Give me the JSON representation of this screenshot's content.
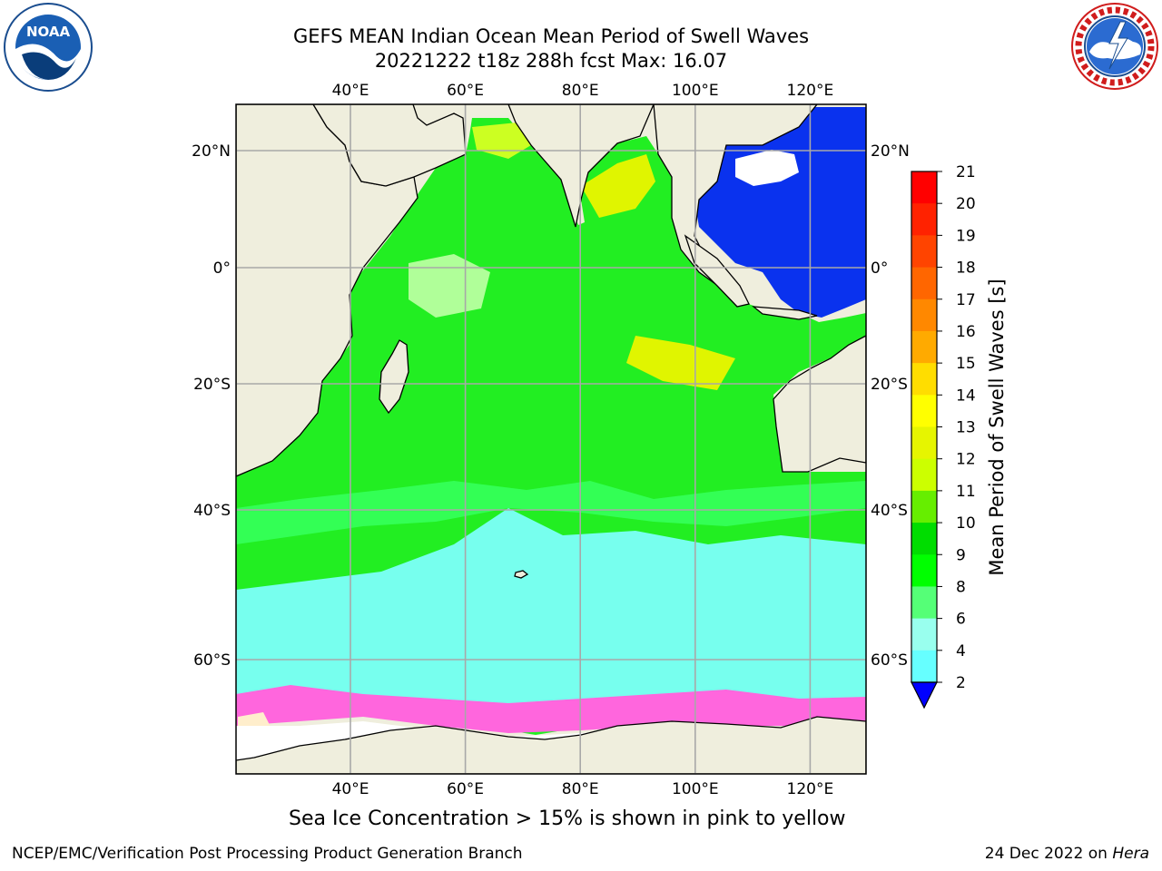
{
  "header": {
    "title_line1": "GEFS MEAN Indian Ocean Mean Period of Swell Waves",
    "title_line2": "20221222 t18z 288h fcst   Max: 16.07"
  },
  "logos": {
    "left": "noaa-logo",
    "left_text": "NOAA",
    "left_ring_text": "NATIONAL OCEANIC AND ATMOSPHERIC ADMINISTRATION · U.S. DEPARTMENT OF COMMERCE",
    "right": "national-weather-service-logo",
    "right_ring_text": "NATIONAL WEATHER SERVICE"
  },
  "map": {
    "lon_ticks": [
      "40°E",
      "60°E",
      "80°E",
      "100°E",
      "120°E"
    ],
    "lat_ticks_left": [
      "20°N",
      "0°",
      "20°S",
      "40°S",
      "60°S"
    ],
    "lat_ticks_right": [
      "20°N",
      "0°",
      "20°S",
      "40°S",
      "60°S"
    ],
    "lon_values": [
      40,
      60,
      80,
      100,
      120
    ],
    "lat_values": [
      20,
      0,
      -20,
      -40,
      -60
    ],
    "extent": {
      "lon_min": 20,
      "lon_max": 130,
      "lat_min": -77,
      "lat_max": 28
    },
    "land_color": "#efeedd",
    "grid": true
  },
  "colorbar": {
    "label": "Mean Period of Swell Waves [s]",
    "ticks": [
      "21",
      "20",
      "19",
      "18",
      "17",
      "16",
      "15",
      "14",
      "13",
      "12",
      "11",
      "10",
      "9",
      "8",
      "6",
      "4",
      "2"
    ],
    "colors": [
      "#ff0000",
      "#ff2200",
      "#ff4400",
      "#ff6600",
      "#ff8800",
      "#ffaa00",
      "#ffdd00",
      "#ffff00",
      "#e6f500",
      "#ccff00",
      "#66ee00",
      "#00dd00",
      "#00ff00",
      "#55ff77",
      "#99ffee",
      "#66ffff",
      "#00ffff",
      "#0066ff"
    ],
    "under_color": "#0000ff"
  },
  "note": "Sea Ice Concentration > 15% is shown in pink to yellow",
  "footer": {
    "left": "NCEP/EMC/Verification Post Processing Product Generation Branch",
    "right_date": "24 Dec 2022 on",
    "right_host": "Hera"
  }
}
